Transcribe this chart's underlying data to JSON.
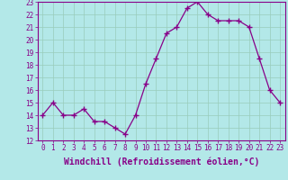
{
  "x": [
    0,
    1,
    2,
    3,
    4,
    5,
    6,
    7,
    8,
    9,
    10,
    11,
    12,
    13,
    14,
    15,
    16,
    17,
    18,
    19,
    20,
    21,
    22,
    23
  ],
  "y": [
    14,
    15,
    14,
    14,
    14.5,
    13.5,
    13.5,
    13,
    12.5,
    14,
    16.5,
    18.5,
    20.5,
    21,
    22.5,
    23,
    22,
    21.5,
    21.5,
    21.5,
    21,
    18.5,
    16,
    15
  ],
  "line_color": "#880088",
  "marker": "+",
  "marker_size": 4,
  "bg_color": "#b3e8e8",
  "grid_color": "#99ccbb",
  "xlabel": "Windchill (Refroidissement éolien,°C)",
  "xlabel_color": "#880088",
  "xlim": [
    -0.5,
    23.5
  ],
  "ylim": [
    12,
    23
  ],
  "yticks": [
    12,
    13,
    14,
    15,
    16,
    17,
    18,
    19,
    20,
    21,
    22,
    23
  ],
  "xticks": [
    0,
    1,
    2,
    3,
    4,
    5,
    6,
    7,
    8,
    9,
    10,
    11,
    12,
    13,
    14,
    15,
    16,
    17,
    18,
    19,
    20,
    21,
    22,
    23
  ],
  "tick_color": "#880088",
  "tick_label_fontsize": 5.5,
  "xlabel_fontsize": 7.0
}
